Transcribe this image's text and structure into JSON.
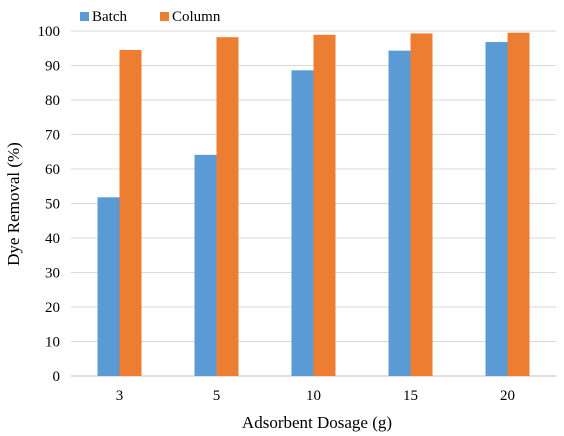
{
  "chart_data": {
    "type": "bar",
    "title": "",
    "xlabel": "Adsorbent Dosage (g)",
    "ylabel": "Dye Removal (%)",
    "categories": [
      "3",
      "5",
      "10",
      "15",
      "20"
    ],
    "series": [
      {
        "name": "Batch",
        "color": "#5b9bd5",
        "values": [
          51.8,
          64.1,
          88.6,
          94.3,
          96.8
        ]
      },
      {
        "name": "Column",
        "color": "#ed7d31",
        "values": [
          94.5,
          98.2,
          98.9,
          99.3,
          99.5
        ]
      }
    ],
    "ylim": [
      0,
      100
    ],
    "yticks": [
      0,
      10,
      20,
      30,
      40,
      50,
      60,
      70,
      80,
      90,
      100
    ],
    "grid": true,
    "legend_position": "top-left"
  }
}
